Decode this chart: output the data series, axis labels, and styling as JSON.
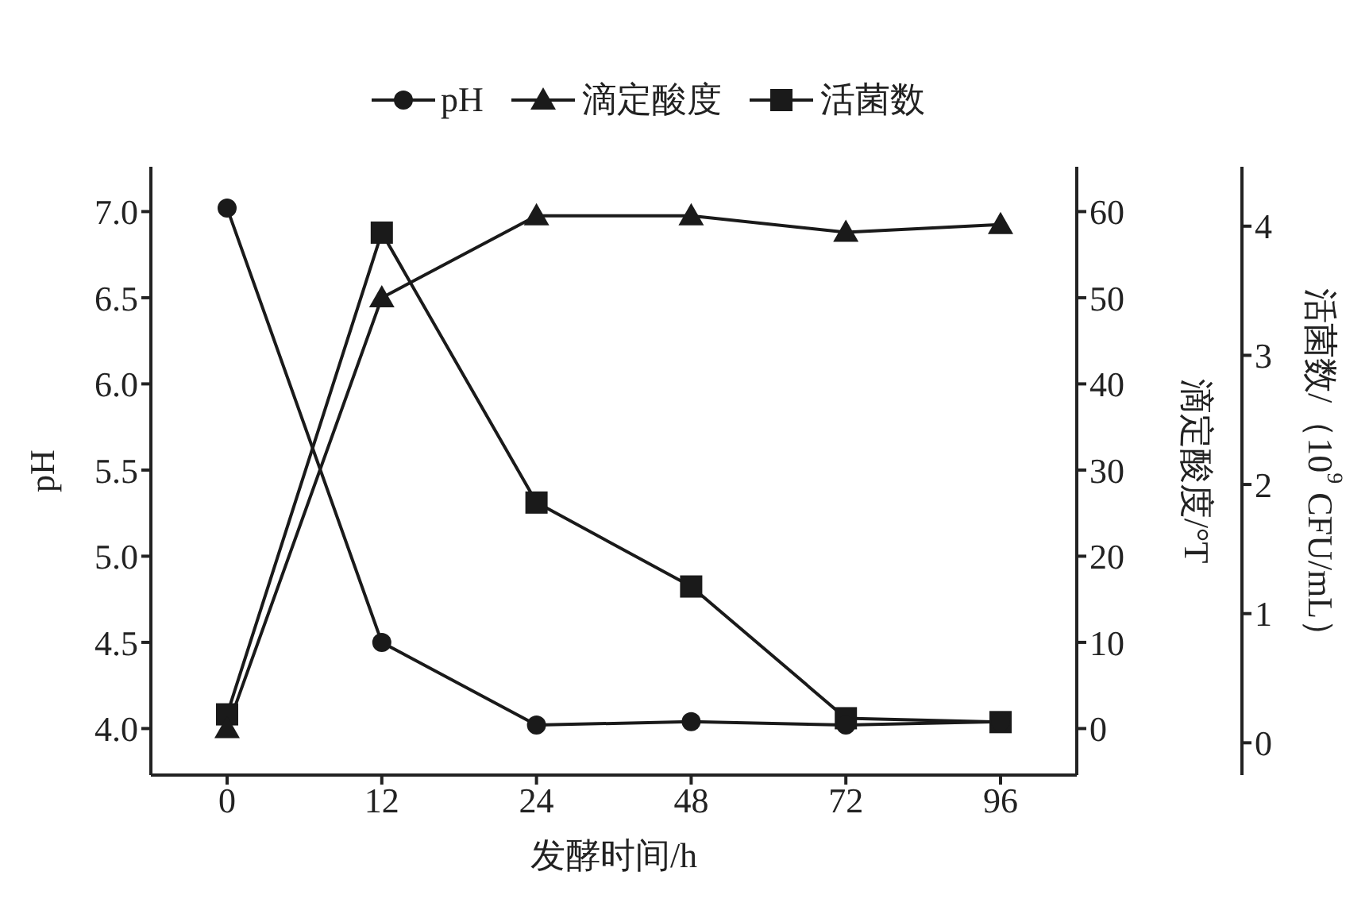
{
  "chart_data": {
    "type": "line",
    "xlabel": "发酵时间/h",
    "ylabel": "pH",
    "y2label": "滴定酸度/°T",
    "y3label": "活菌数/（10$^{9}$ CFU/mL）",
    "categories": [
      "0",
      "12",
      "24",
      "48",
      "72",
      "96"
    ],
    "ylim": [
      3.73,
      7.26
    ],
    "yticks": [
      {
        "value": 4,
        "label": "4.0"
      },
      {
        "value": 4.5,
        "label": "4.5"
      },
      {
        "value": 5,
        "label": "5.0"
      },
      {
        "value": 5.5,
        "label": "5.5"
      },
      {
        "value": 6,
        "label": "6.0"
      },
      {
        "value": 6.5,
        "label": "6.5"
      },
      {
        "value": 7,
        "label": "7.0"
      }
    ],
    "y2lim": [
      -5.4,
      65.2
    ],
    "y2ticks": [
      0,
      10,
      20,
      30,
      40,
      50,
      60
    ],
    "y3lim": [
      -0.25,
      4.46
    ],
    "y3ticks": [
      0,
      1,
      2,
      3,
      4
    ],
    "legend": "top",
    "grid": false,
    "series": [
      {
        "name": "pH",
        "color": "#1a1a1a",
        "marker": "circle",
        "values": [
          7.02,
          4.5,
          4.02,
          4.04,
          4.02,
          4.04
        ]
      },
      {
        "name": "滴定酸度",
        "color": "#1a1a1a",
        "marker": "triangle",
        "axis": "y2",
        "values": [
          0,
          50,
          59.5,
          59.5,
          57.6,
          58.5
        ]
      },
      {
        "name": "活菌数",
        "color": "#1a1a1a",
        "marker": "square",
        "axis": "y3",
        "values": [
          0.22,
          3.95,
          1.86,
          1.21,
          0.19,
          0.16
        ]
      }
    ]
  }
}
